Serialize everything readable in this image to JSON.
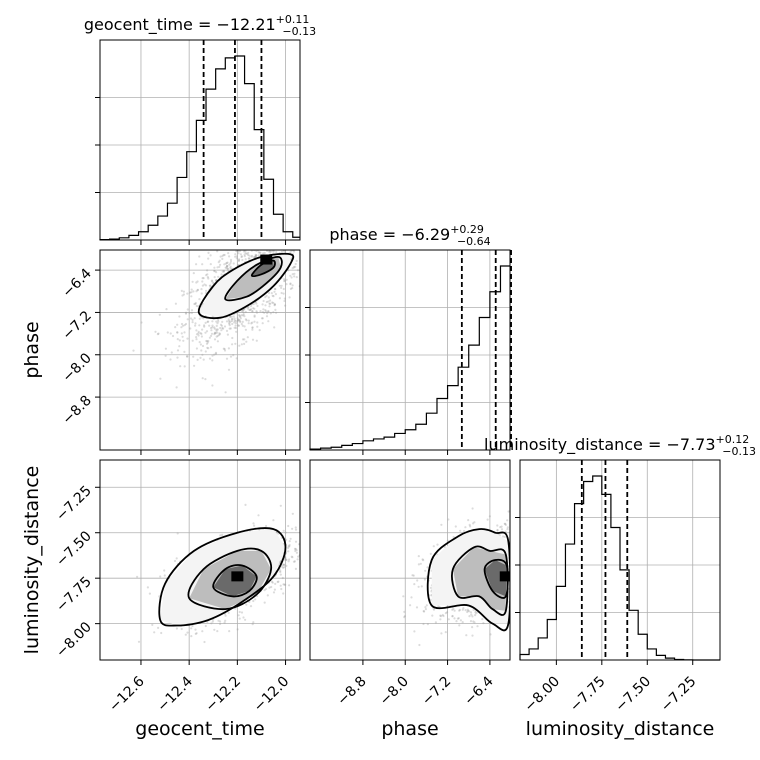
{
  "chart_data": {
    "type": "corner",
    "parameters": [
      "geocent_time",
      "phase",
      "luminosity_distance"
    ],
    "titles": [
      {
        "param": "geocent_time",
        "label": "geocent_time = −12.21",
        "plus": "+0.11",
        "minus": "−0.13",
        "median": -12.21,
        "err_plus": 0.11,
        "err_minus": 0.13
      },
      {
        "param": "phase",
        "label": "phase = −6.29",
        "plus": "+0.29",
        "minus": "−0.64",
        "median": -6.29,
        "err_plus": 0.29,
        "err_minus": 0.64
      },
      {
        "param": "luminosity_distance",
        "label": "luminosity_distance = −7.73",
        "plus": "+0.12",
        "minus": "−0.13",
        "median": -7.73,
        "err_plus": 0.12,
        "err_minus": 0.13
      }
    ],
    "axes": {
      "geocent_time": {
        "range": [
          -12.77,
          -11.94
        ],
        "ticks": [
          -12.6,
          -12.4,
          -12.2,
          -12.0
        ],
        "tick_labels": [
          "−12.6",
          "−12.4",
          "−12.2",
          "−12.0"
        ]
      },
      "phase": {
        "range": [
          -9.8,
          -6.02
        ],
        "ticks": [
          -8.8,
          -8.0,
          -7.2,
          -6.4
        ],
        "tick_labels": [
          "−8.8",
          "−8.0",
          "−7.2",
          "−6.4"
        ]
      },
      "luminosity_distance": {
        "range": [
          -8.2,
          -7.1
        ],
        "ticks": [
          -8.0,
          -7.75,
          -7.5,
          -7.25
        ],
        "tick_labels": [
          "−8.00",
          "−7.75",
          "−7.50",
          "−7.25"
        ]
      }
    },
    "hist_geocent_time": {
      "edges": [
        -12.77,
        -12.73,
        -12.69,
        -12.65,
        -12.61,
        -12.57,
        -12.53,
        -12.49,
        -12.45,
        -12.41,
        -12.37,
        -12.33,
        -12.29,
        -12.25,
        -12.21,
        -12.17,
        -12.13,
        -12.09,
        -12.05,
        -12.01,
        -11.97,
        -11.94
      ],
      "counts": [
        0.2,
        0.5,
        1.2,
        2.5,
        4.5,
        8,
        13,
        20,
        34,
        48,
        65,
        82,
        93,
        99,
        100,
        85,
        60,
        33,
        14,
        4.5,
        1.5
      ]
    },
    "hist_phase": {
      "edges": [
        -9.8,
        -9.6,
        -9.4,
        -9.2,
        -9.0,
        -8.8,
        -8.6,
        -8.4,
        -8.2,
        -8.0,
        -7.8,
        -7.6,
        -7.4,
        -7.2,
        -7.0,
        -6.8,
        -6.6,
        -6.4,
        -6.2,
        -6.02
      ],
      "counts": [
        0.5,
        1,
        1.5,
        2.5,
        3.5,
        5,
        6,
        7,
        9,
        11,
        14,
        20,
        28,
        35,
        45,
        57,
        72,
        86,
        100
      ]
    },
    "hist_luminosity_distance": {
      "edges": [
        -8.2,
        -8.15,
        -8.1,
        -8.05,
        -8.0,
        -7.95,
        -7.9,
        -7.85,
        -7.8,
        -7.75,
        -7.7,
        -7.65,
        -7.6,
        -7.55,
        -7.5,
        -7.45,
        -7.4,
        -7.35,
        -7.3,
        -7.25,
        -7.2,
        -7.15,
        -7.1
      ],
      "counts": [
        3,
        6,
        12,
        22,
        40,
        63,
        85,
        97,
        100,
        90,
        72,
        49,
        27,
        14,
        6,
        2.5,
        1,
        0.3,
        0.1,
        0,
        0,
        0
      ]
    },
    "quantiles": {
      "geocent_time": [
        -12.34,
        -12.21,
        -12.1
      ],
      "phase": [
        -6.93,
        -6.29,
        -6.0
      ],
      "luminosity_distance": [
        -7.86,
        -7.73,
        -7.61
      ]
    },
    "contours": {
      "phase_vs_geocent_time": [
        [
          [
            -12.36,
            -7.2
          ],
          [
            -12.3,
            -6.7
          ],
          [
            -12.22,
            -6.4
          ],
          [
            -12.1,
            -6.15
          ],
          [
            -11.98,
            -6.1
          ],
          [
            -11.98,
            -6.28
          ],
          [
            -12.05,
            -6.7
          ],
          [
            -12.15,
            -7.05
          ],
          [
            -12.27,
            -7.3
          ]
        ],
        [
          [
            -12.25,
            -6.95
          ],
          [
            -12.2,
            -6.6
          ],
          [
            -12.12,
            -6.3
          ],
          [
            -12.03,
            -6.15
          ],
          [
            -12.02,
            -6.35
          ],
          [
            -12.08,
            -6.65
          ],
          [
            -12.16,
            -6.9
          ]
        ],
        [
          [
            -12.14,
            -6.5
          ],
          [
            -12.1,
            -6.3
          ],
          [
            -12.05,
            -6.22
          ],
          [
            -12.05,
            -6.35
          ],
          [
            -12.1,
            -6.48
          ]
        ]
      ],
      "luminosity_distance_vs_geocent_time": [
        [
          [
            -12.52,
            -7.98
          ],
          [
            -12.5,
            -7.78
          ],
          [
            -12.38,
            -7.6
          ],
          [
            -12.2,
            -7.5
          ],
          [
            -12.05,
            -7.48
          ],
          [
            -12.0,
            -7.58
          ],
          [
            -12.05,
            -7.74
          ],
          [
            -12.18,
            -7.88
          ],
          [
            -12.32,
            -7.98
          ],
          [
            -12.45,
            -8.01
          ]
        ],
        [
          [
            -12.4,
            -7.86
          ],
          [
            -12.34,
            -7.7
          ],
          [
            -12.2,
            -7.6
          ],
          [
            -12.1,
            -7.6
          ],
          [
            -12.06,
            -7.7
          ],
          [
            -12.12,
            -7.84
          ],
          [
            -12.25,
            -7.92
          ]
        ],
        [
          [
            -12.3,
            -7.8
          ],
          [
            -12.25,
            -7.7
          ],
          [
            -12.18,
            -7.68
          ],
          [
            -12.12,
            -7.74
          ],
          [
            -12.15,
            -7.82
          ],
          [
            -12.22,
            -7.85
          ]
        ]
      ],
      "luminosity_distance_vs_phase": [
        [
          [
            -7.5,
            -7.9
          ],
          [
            -7.5,
            -7.65
          ],
          [
            -7.0,
            -7.52
          ],
          [
            -6.6,
            -7.48
          ],
          [
            -6.3,
            -7.5
          ],
          [
            -6.05,
            -7.55
          ],
          [
            -6.05,
            -8.0
          ],
          [
            -6.35,
            -8.0
          ],
          [
            -6.8,
            -7.9
          ]
        ],
        [
          [
            -7.0,
            -7.85
          ],
          [
            -7.1,
            -7.7
          ],
          [
            -6.7,
            -7.58
          ],
          [
            -6.4,
            -7.6
          ],
          [
            -6.1,
            -7.62
          ],
          [
            -6.1,
            -7.93
          ],
          [
            -6.35,
            -7.92
          ],
          [
            -6.6,
            -7.85
          ]
        ],
        [
          [
            -6.35,
            -7.82
          ],
          [
            -6.5,
            -7.7
          ],
          [
            -6.3,
            -7.65
          ],
          [
            -6.08,
            -7.68
          ],
          [
            -6.1,
            -7.85
          ]
        ]
      ]
    },
    "density_centers": {
      "phase_vs_geocent_time": {
        "mx": -12.18,
        "my": -6.75,
        "sx": 0.12,
        "sy": 0.55,
        "rho": 0.6,
        "dense": [
          -12.08,
          -6.2
        ]
      },
      "luminosity_distance_vs_geocent_time": {
        "mx": -12.21,
        "my": -7.73,
        "sx": 0.12,
        "sy": 0.12,
        "rho": 0.55,
        "dense": [
          -12.2,
          -7.74
        ]
      },
      "luminosity_distance_vs_phase": {
        "mx": -6.5,
        "my": -7.73,
        "sx": 0.55,
        "sy": 0.12,
        "rho": 0.3,
        "dense": [
          -6.1,
          -7.74
        ]
      }
    },
    "xlabels": [
      "geocent_time",
      "phase",
      "luminosity_distance"
    ],
    "ylabels": [
      "phase",
      "luminosity_distance"
    ],
    "grid": true
  }
}
